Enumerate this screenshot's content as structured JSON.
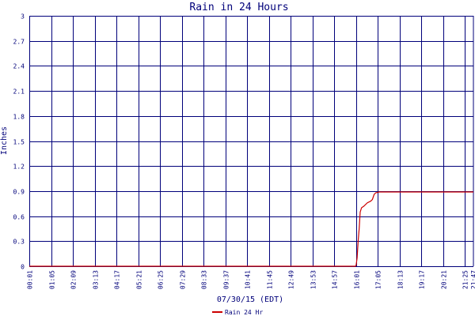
{
  "chart_data": {
    "type": "line",
    "title": "Rain in 24 Hours",
    "xlabel": "07/30/15 (EDT)",
    "ylabel": "Inches",
    "ylim": [
      0,
      3
    ],
    "y_ticks": [
      "0",
      "0.3",
      "0.6",
      "0.9",
      "1.2",
      "1.5",
      "1.8",
      "2.1",
      "2.4",
      "2.7",
      "3"
    ],
    "x_range": [
      "00:01",
      "21:47"
    ],
    "x_ticks": [
      "00:01",
      "01:05",
      "02:09",
      "03:13",
      "04:17",
      "05:21",
      "06:25",
      "07:29",
      "08:33",
      "09:37",
      "10:41",
      "11:45",
      "12:49",
      "13:53",
      "14:57",
      "16:01",
      "17:05",
      "18:13",
      "19:17",
      "20:21",
      "21:25",
      "21:47"
    ],
    "grid": true,
    "legend_position": "bottom-center",
    "series": [
      {
        "name": "Rain 24 Hr",
        "color": "#cc0000",
        "points": [
          [
            "00:01",
            0
          ],
          [
            "16:00",
            0
          ],
          [
            "16:02",
            0.01
          ],
          [
            "16:05",
            0.1
          ],
          [
            "16:08",
            0.3
          ],
          [
            "16:11",
            0.45
          ],
          [
            "16:14",
            0.65
          ],
          [
            "16:18",
            0.7
          ],
          [
            "16:25",
            0.72
          ],
          [
            "16:35",
            0.76
          ],
          [
            "16:45",
            0.78
          ],
          [
            "16:50",
            0.8
          ],
          [
            "16:55",
            0.86
          ],
          [
            "17:00",
            0.88
          ],
          [
            "17:10",
            0.89
          ],
          [
            "21:47",
            0.89
          ]
        ]
      }
    ]
  },
  "colors": {
    "grid": "#00007a",
    "axis_text": "#00007a",
    "series": "#cc0000"
  }
}
